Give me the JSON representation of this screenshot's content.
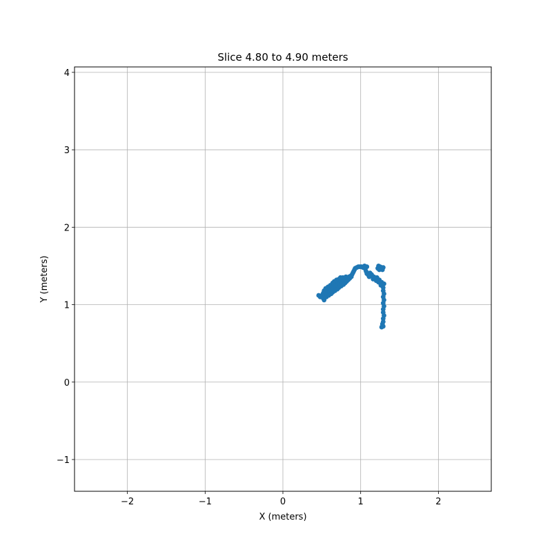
{
  "chart_data": {
    "type": "scatter",
    "title": "Slice 4.80 to 4.90 meters",
    "xlabel": "X (meters)",
    "ylabel": "Y (meters)",
    "xlim": [
      -2.68,
      2.68
    ],
    "ylim": [
      -1.41,
      4.07
    ],
    "xticks": [
      -2,
      -1,
      0,
      1,
      2
    ],
    "yticks": [
      -1,
      0,
      1,
      2,
      3,
      4
    ],
    "xtick_labels": [
      "−2",
      "−1",
      "0",
      "1",
      "2"
    ],
    "ytick_labels": [
      "−1",
      "0",
      "1",
      "2",
      "3",
      "4"
    ],
    "grid": true,
    "series": [
      {
        "color": "#1f77b4",
        "points": [
          [
            0.46,
            1.12
          ],
          [
            0.48,
            1.1
          ],
          [
            0.5,
            1.11
          ],
          [
            0.51,
            1.13
          ],
          [
            0.52,
            1.08
          ],
          [
            0.53,
            1.06
          ],
          [
            0.52,
            1.15
          ],
          [
            0.53,
            1.18
          ],
          [
            0.54,
            1.12
          ],
          [
            0.55,
            1.16
          ],
          [
            0.55,
            1.21
          ],
          [
            0.56,
            1.1
          ],
          [
            0.57,
            1.14
          ],
          [
            0.57,
            1.19
          ],
          [
            0.58,
            1.23
          ],
          [
            0.59,
            1.12
          ],
          [
            0.6,
            1.17
          ],
          [
            0.6,
            1.21
          ],
          [
            0.61,
            1.25
          ],
          [
            0.62,
            1.14
          ],
          [
            0.62,
            1.19
          ],
          [
            0.63,
            1.23
          ],
          [
            0.64,
            1.28
          ],
          [
            0.64,
            1.16
          ],
          [
            0.65,
            1.21
          ],
          [
            0.66,
            1.25
          ],
          [
            0.66,
            1.3
          ],
          [
            0.67,
            1.18
          ],
          [
            0.68,
            1.23
          ],
          [
            0.68,
            1.27
          ],
          [
            0.69,
            1.32
          ],
          [
            0.7,
            1.2
          ],
          [
            0.7,
            1.25
          ],
          [
            0.71,
            1.29
          ],
          [
            0.72,
            1.33
          ],
          [
            0.72,
            1.22
          ],
          [
            0.73,
            1.27
          ],
          [
            0.74,
            1.31
          ],
          [
            0.74,
            1.35
          ],
          [
            0.75,
            1.24
          ],
          [
            0.76,
            1.29
          ],
          [
            0.76,
            1.33
          ],
          [
            0.77,
            1.35
          ],
          [
            0.78,
            1.26
          ],
          [
            0.78,
            1.31
          ],
          [
            0.79,
            1.34
          ],
          [
            0.8,
            1.28
          ],
          [
            0.8,
            1.33
          ],
          [
            0.81,
            1.36
          ],
          [
            0.82,
            1.3
          ],
          [
            0.83,
            1.34
          ],
          [
            0.84,
            1.32
          ],
          [
            0.85,
            1.36
          ],
          [
            0.86,
            1.34
          ],
          [
            0.87,
            1.37
          ],
          [
            0.88,
            1.36
          ],
          [
            0.89,
            1.39
          ],
          [
            0.9,
            1.41
          ],
          [
            0.91,
            1.43
          ],
          [
            0.92,
            1.45
          ],
          [
            0.93,
            1.47
          ],
          [
            0.95,
            1.48
          ],
          [
            0.97,
            1.49
          ],
          [
            0.99,
            1.49
          ],
          [
            1.01,
            1.49
          ],
          [
            1.03,
            1.48
          ],
          [
            1.05,
            1.5
          ],
          [
            1.08,
            1.49
          ],
          [
            1.06,
            1.46
          ],
          [
            1.07,
            1.43
          ],
          [
            1.08,
            1.4
          ],
          [
            1.1,
            1.38
          ],
          [
            1.11,
            1.36
          ],
          [
            1.12,
            1.41
          ],
          [
            1.14,
            1.39
          ],
          [
            1.15,
            1.37
          ],
          [
            1.16,
            1.33
          ],
          [
            1.17,
            1.36
          ],
          [
            1.19,
            1.34
          ],
          [
            1.2,
            1.31
          ],
          [
            1.21,
            1.35
          ],
          [
            1.22,
            1.32
          ],
          [
            1.23,
            1.29
          ],
          [
            1.24,
            1.32
          ],
          [
            1.25,
            1.28
          ],
          [
            1.26,
            1.25
          ],
          [
            1.27,
            1.29
          ],
          [
            1.28,
            1.26
          ],
          [
            1.29,
            1.22
          ],
          [
            1.3,
            1.27
          ],
          [
            1.22,
            1.47
          ],
          [
            1.23,
            1.5
          ],
          [
            1.24,
            1.45
          ],
          [
            1.25,
            1.49
          ],
          [
            1.26,
            1.46
          ],
          [
            1.27,
            1.48
          ],
          [
            1.28,
            1.45
          ],
          [
            1.29,
            1.48
          ],
          [
            1.29,
            1.18
          ],
          [
            1.3,
            1.14
          ],
          [
            1.29,
            1.1
          ],
          [
            1.3,
            1.06
          ],
          [
            1.29,
            1.02
          ],
          [
            1.3,
            0.98
          ],
          [
            1.29,
            0.94
          ],
          [
            1.29,
            0.9
          ],
          [
            1.3,
            0.86
          ],
          [
            1.29,
            0.82
          ],
          [
            1.29,
            0.78
          ],
          [
            1.28,
            0.75
          ],
          [
            1.29,
            0.72
          ],
          [
            1.27,
            0.71
          ]
        ]
      }
    ]
  }
}
